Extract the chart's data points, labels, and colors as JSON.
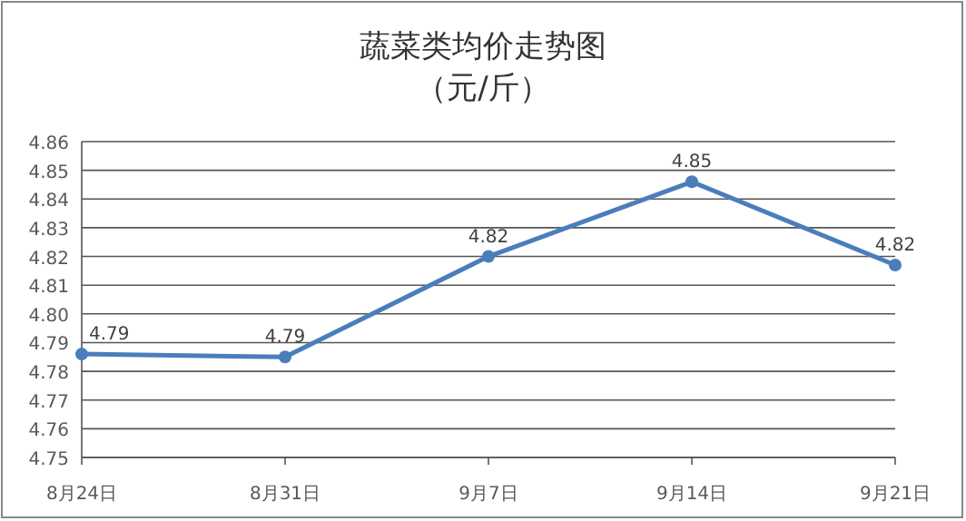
{
  "chart_data": {
    "type": "line",
    "title": "蔬菜类均价走势图",
    "subtitle": "（元/斤）",
    "categories": [
      "8月24日",
      "8月31日",
      "9月7日",
      "9月14日",
      "9月21日"
    ],
    "series": [
      {
        "color": "#4a7ebb",
        "values": [
          4.786,
          4.785,
          4.82,
          4.846,
          4.817
        ],
        "value_labels": [
          "4.79",
          "4.79",
          "4.82",
          "4.85",
          "4.82"
        ]
      }
    ],
    "ylim": [
      4.75,
      4.86
    ],
    "yticks": [
      4.75,
      4.76,
      4.77,
      4.78,
      4.79,
      {
        "value": 4.8,
        "label": "4.80"
      },
      4.81,
      4.82,
      4.83,
      4.84,
      4.85,
      4.86
    ],
    "grid": "y",
    "marker": "circle",
    "line_style": "solid"
  }
}
